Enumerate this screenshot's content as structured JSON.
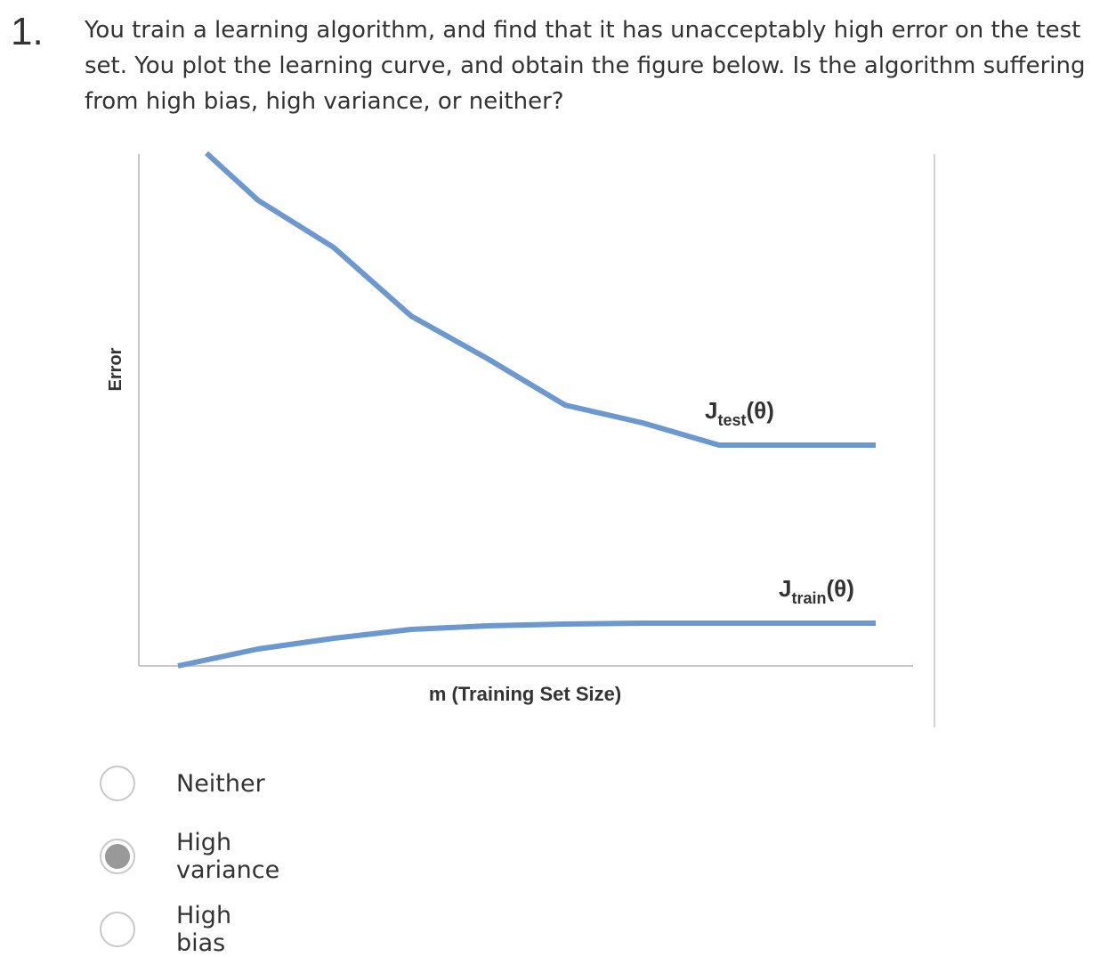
{
  "question": {
    "number": "1.",
    "prompt": "You train a learning algorithm, and find that it has unacceptably high error on the test set. You plot the learning curve, and obtain the figure below. Is the algorithm suffering from high bias, high variance, or neither?"
  },
  "figure": {
    "ylabel": "Error",
    "xlabel": "m (Training Set Size)",
    "line_color": "#6a98cf",
    "test_label": {
      "base": "J",
      "sub": "test",
      "arg": "(θ)"
    },
    "train_label": {
      "base": "J",
      "sub": "train",
      "arg": "(θ)"
    }
  },
  "options": [
    {
      "label": "Neither",
      "selected": false
    },
    {
      "label": "High variance",
      "selected": true
    },
    {
      "label": "High bias",
      "selected": false
    }
  ]
}
